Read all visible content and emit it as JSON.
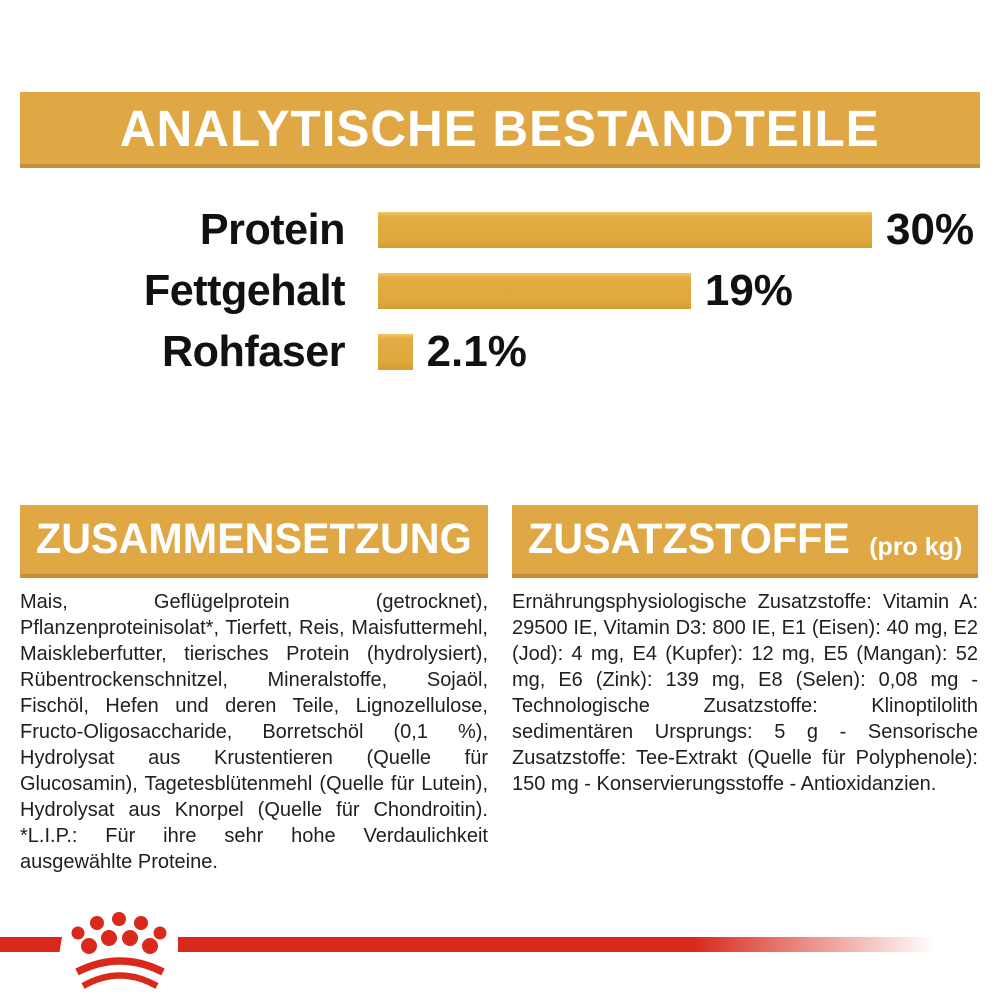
{
  "colors": {
    "gold": "#DFA845",
    "gold_dark": "#C1913A",
    "bar_gold": "#DFA83C",
    "red": "#D9291C",
    "text": "#1F1F1F"
  },
  "header": {
    "title": "ANALYTISCHE BESTANDTEILE"
  },
  "chart_data": {
    "type": "bar",
    "orientation": "horizontal",
    "title": "ANALYTISCHE BESTANDTEILE",
    "categories": [
      "Protein",
      "Fettgehalt",
      "Rohfaser"
    ],
    "values": [
      30,
      19,
      2.1
    ],
    "value_labels": [
      "30%",
      "19%",
      "2.1%"
    ],
    "unit": "%",
    "xlim": [
      0,
      30
    ],
    "grid": false,
    "legend": "none",
    "bar_color": "#DFA83C"
  },
  "sections": {
    "composition": {
      "title": "ZUSAMMENSETZUNG",
      "body": "Mais, Geflügelprotein (getrocknet), Pflanzenproteinisolat*, Tierfett, Reis, Maisfuttermehl, Maiskleberfutter, tierisches Protein (hydrolysiert), Rübentrockenschnitzel, Mineralstoffe, Sojaöl, Fischöl, Hefen und deren Teile, Lignozellulose, Fructo-Oligosaccharide, Borretschöl (0,1 %), Hydrolysat aus Krustentieren (Quelle für Glucosamin), Tagetesblütenmehl (Quelle für Lutein), Hydrolysat aus Knorpel (Quelle für Chondroitin). *L.I.P.: Für ihre sehr hohe Verdaulichkeit ausgewählte Proteine."
    },
    "additives": {
      "title": "ZUSATZSTOFFE",
      "title_suffix": "(pro kg)",
      "body": "Ernährungsphysiologische Zusatzstoffe: Vitamin A: 29500 IE, Vitamin D3: 800 IE, E1 (Eisen): 40 mg, E2 (Jod): 4 mg, E4 (Kupfer): 12 mg, E5 (Mangan): 52 mg, E6 (Zink): 139 mg, E8 (Selen): 0,08 mg - Technologische Zusatzstoffe: Klinoptilolith sedimentären Ursprungs: 5 g - Sensorische Zusatzstoffe: Tee-Extrakt (Quelle für Polyphenole): 150 mg - Konservierungsstoffe - Antioxidanzien."
    }
  },
  "footer": {
    "logo_icon": "royal-canin-crown-icon"
  }
}
